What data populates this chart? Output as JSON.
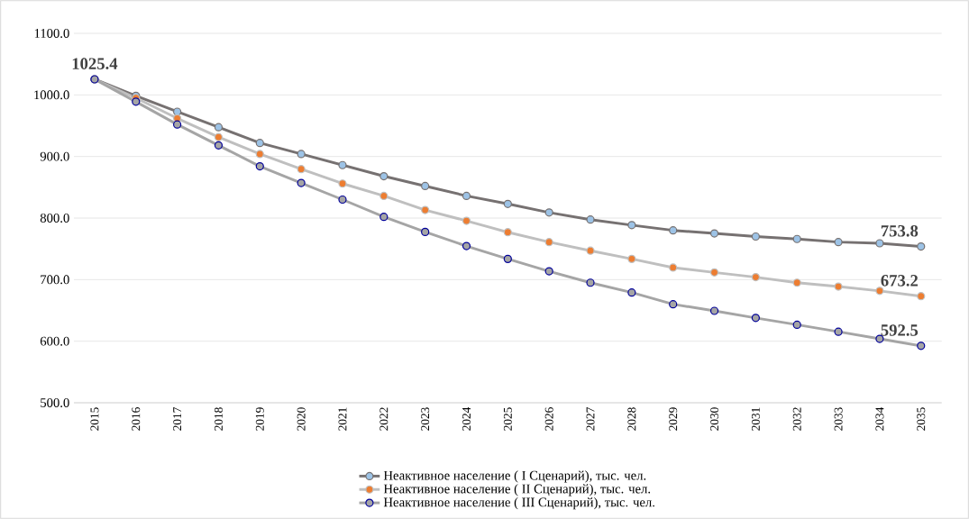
{
  "chart_data": {
    "type": "line",
    "categories": [
      "2015",
      "2016",
      "2017",
      "2018",
      "2019",
      "2020",
      "2021",
      "2022",
      "2023",
      "2024",
      "2025",
      "2026",
      "2027",
      "2028",
      "2029",
      "2030",
      "2031",
      "2032",
      "2033",
      "2034",
      "2035"
    ],
    "series": [
      {
        "name": "Неактивное население ( I Сценарий), тыс. чел.",
        "color": "#767171",
        "values": [
          1025.4,
          998.5,
          972.7,
          947.5,
          922,
          904,
          886,
          868,
          852,
          836,
          823,
          809,
          797.5,
          788.5,
          780,
          775,
          770,
          766,
          761,
          759,
          753.8
        ],
        "value_labels": [
          "1025.4",
          null,
          null,
          null,
          null,
          null,
          null,
          null,
          null,
          null,
          null,
          null,
          null,
          null,
          null,
          null,
          null,
          null,
          null,
          null,
          "753.8"
        ]
      },
      {
        "name": "Неактивное население ( II Сценарий), тыс. чел.",
        "color": "#bfbfbf",
        "values": [
          1025.4,
          995,
          962,
          931.5,
          904,
          879.5,
          856,
          836,
          813,
          795.5,
          777,
          761,
          747,
          733.6,
          719.6,
          711.7,
          704,
          695,
          688.7,
          681.7,
          673.2
        ],
        "value_labels": [
          null,
          null,
          null,
          null,
          null,
          null,
          null,
          null,
          null,
          null,
          null,
          null,
          null,
          null,
          null,
          null,
          null,
          null,
          null,
          null,
          "673.2"
        ]
      },
      {
        "name": "Неактивное население ( III Сценарий), тыс. чел.",
        "color": "#a5a5a5",
        "values": [
          1025.4,
          989,
          952,
          918,
          884,
          857,
          830,
          802,
          777.5,
          754.5,
          733.6,
          713.6,
          695,
          679,
          660,
          649.3,
          637.8,
          626.7,
          615.4,
          603.8,
          592.5
        ],
        "value_labels": [
          null,
          null,
          null,
          null,
          null,
          null,
          null,
          null,
          null,
          null,
          null,
          null,
          null,
          null,
          null,
          null,
          null,
          null,
          null,
          null,
          "592.5"
        ]
      }
    ],
    "ylim": [
      500,
      1100
    ],
    "yticks": [
      {
        "value": 500,
        "label": "500.0"
      },
      {
        "value": 600,
        "label": "600.0"
      },
      {
        "value": 700,
        "label": "700.0"
      },
      {
        "value": 800,
        "label": "800.0"
      },
      {
        "value": 900,
        "label": "900.0"
      },
      {
        "value": 1000,
        "label": "1000.0"
      },
      {
        "value": 1100,
        "label": "1100.0"
      }
    ],
    "grid": "y",
    "legend": "bottom",
    "marker": "circle",
    "line_style": "solid"
  }
}
